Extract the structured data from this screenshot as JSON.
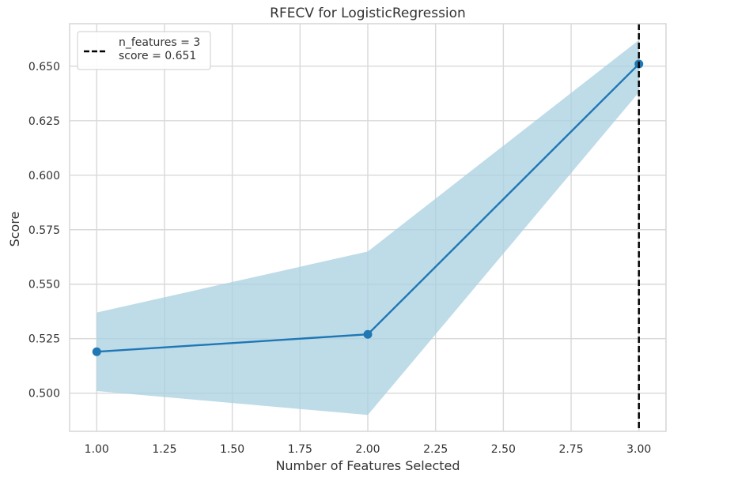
{
  "chart_data": {
    "type": "line",
    "title": "RFECV for LogisticRegression",
    "xlabel": "Number of Features Selected",
    "ylabel": "Score",
    "x": [
      1.0,
      2.0,
      3.0
    ],
    "series": [
      {
        "values": [
          0.519,
          0.527,
          0.651
        ],
        "band_upper": [
          0.537,
          0.565,
          0.662
        ],
        "band_lower": [
          0.501,
          0.49,
          0.638
        ],
        "color": "#1f77b4"
      }
    ],
    "band_color": "#a8cfe0",
    "selection_line": {
      "x": 3.0,
      "style": "dashed",
      "color": "#000000"
    },
    "xlim": [
      0.9,
      3.1
    ],
    "ylim": [
      0.4825,
      0.6695
    ],
    "xticks": [
      1.0,
      1.25,
      1.5,
      1.75,
      2.0,
      2.25,
      2.5,
      2.75,
      3.0
    ],
    "xtick_labels": [
      "1.00",
      "1.25",
      "1.50",
      "1.75",
      "2.00",
      "2.25",
      "2.50",
      "2.75",
      "3.00"
    ],
    "yticks": [
      0.5,
      0.525,
      0.55,
      0.575,
      0.6,
      0.625,
      0.65
    ],
    "ytick_labels": [
      "0.500",
      "0.525",
      "0.550",
      "0.575",
      "0.600",
      "0.625",
      "0.650"
    ],
    "grid": true,
    "legend": {
      "placement": "top-left",
      "lines": [
        "n_features = 3",
        "score = 0.651"
      ]
    }
  }
}
